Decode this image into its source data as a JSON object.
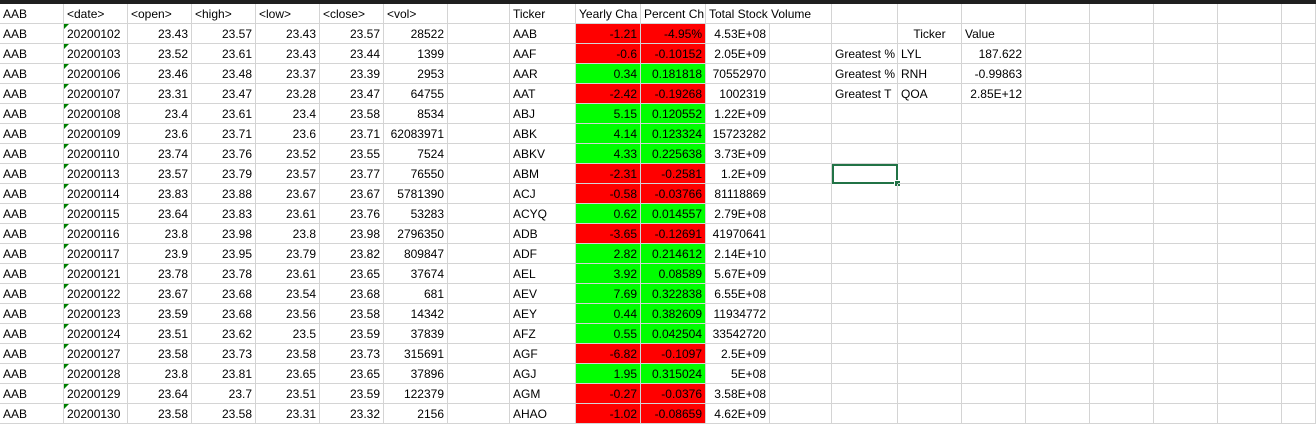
{
  "header": {
    "col_a": "AAB",
    "date": "<date>",
    "open": "<open>",
    "high": "<high>",
    "low": "<low>",
    "close": "<close>",
    "vol": "<vol>",
    "ticker": "Ticker",
    "yearly_change": "Yearly Cha",
    "percent_change": "Percent Ch",
    "total_volume": "Total Stock Volume"
  },
  "stock_rows": [
    [
      "AAB",
      "20200102",
      "23.43",
      "23.57",
      "23.43",
      "23.57",
      "28522"
    ],
    [
      "AAB",
      "20200103",
      "23.52",
      "23.61",
      "23.43",
      "23.44",
      "1399"
    ],
    [
      "AAB",
      "20200106",
      "23.46",
      "23.48",
      "23.37",
      "23.39",
      "2953"
    ],
    [
      "AAB",
      "20200107",
      "23.31",
      "23.47",
      "23.28",
      "23.47",
      "64755"
    ],
    [
      "AAB",
      "20200108",
      "23.4",
      "23.61",
      "23.4",
      "23.58",
      "8534"
    ],
    [
      "AAB",
      "20200109",
      "23.6",
      "23.71",
      "23.6",
      "23.71",
      "62083971"
    ],
    [
      "AAB",
      "20200110",
      "23.74",
      "23.76",
      "23.52",
      "23.55",
      "7524"
    ],
    [
      "AAB",
      "20200113",
      "23.57",
      "23.79",
      "23.57",
      "23.77",
      "76550"
    ],
    [
      "AAB",
      "20200114",
      "23.83",
      "23.88",
      "23.67",
      "23.67",
      "5781390"
    ],
    [
      "AAB",
      "20200115",
      "23.64",
      "23.83",
      "23.61",
      "23.76",
      "53283"
    ],
    [
      "AAB",
      "20200116",
      "23.8",
      "23.98",
      "23.8",
      "23.98",
      "2796350"
    ],
    [
      "AAB",
      "20200117",
      "23.9",
      "23.95",
      "23.79",
      "23.82",
      "809847"
    ],
    [
      "AAB",
      "20200121",
      "23.78",
      "23.78",
      "23.61",
      "23.65",
      "37674"
    ],
    [
      "AAB",
      "20200122",
      "23.67",
      "23.68",
      "23.54",
      "23.68",
      "681"
    ],
    [
      "AAB",
      "20200123",
      "23.59",
      "23.68",
      "23.56",
      "23.58",
      "14342"
    ],
    [
      "AAB",
      "20200124",
      "23.51",
      "23.62",
      "23.5",
      "23.59",
      "37839"
    ],
    [
      "AAB",
      "20200127",
      "23.58",
      "23.73",
      "23.58",
      "23.73",
      "315691"
    ],
    [
      "AAB",
      "20200128",
      "23.8",
      "23.81",
      "23.65",
      "23.65",
      "37896"
    ],
    [
      "AAB",
      "20200129",
      "23.64",
      "23.7",
      "23.51",
      "23.59",
      "122379"
    ],
    [
      "AAB",
      "20200130",
      "23.58",
      "23.58",
      "23.31",
      "23.32",
      "2156"
    ]
  ],
  "summary_rows": [
    {
      "ticker": "AAB",
      "yearly": "-1.21",
      "percent": "-4.95%",
      "volume": "4.53E+08",
      "status": "negative"
    },
    {
      "ticker": "AAF",
      "yearly": "-0.6",
      "percent": "-0.10152",
      "volume": "2.05E+09",
      "status": "negative"
    },
    {
      "ticker": "AAR",
      "yearly": "0.34",
      "percent": "0.181818",
      "volume": "70552970",
      "status": "positive"
    },
    {
      "ticker": "AAT",
      "yearly": "-2.42",
      "percent": "-0.19268",
      "volume": "1002319",
      "status": "negative"
    },
    {
      "ticker": "ABJ",
      "yearly": "5.15",
      "percent": "0.120552",
      "volume": "1.22E+09",
      "status": "positive"
    },
    {
      "ticker": "ABK",
      "yearly": "4.14",
      "percent": "0.123324",
      "volume": "15723282",
      "status": "positive"
    },
    {
      "ticker": "ABKV",
      "yearly": "4.33",
      "percent": "0.225638",
      "volume": "3.73E+09",
      "status": "positive"
    },
    {
      "ticker": "ABM",
      "yearly": "-2.31",
      "percent": "-0.2581",
      "volume": "1.2E+09",
      "status": "negative"
    },
    {
      "ticker": "ACJ",
      "yearly": "-0.58",
      "percent": "-0.03766",
      "volume": "81118869",
      "status": "negative"
    },
    {
      "ticker": "ACYQ",
      "yearly": "0.62",
      "percent": "0.014557",
      "volume": "2.79E+08",
      "status": "positive"
    },
    {
      "ticker": "ADB",
      "yearly": "-3.65",
      "percent": "-0.12691",
      "volume": "41970641",
      "status": "negative"
    },
    {
      "ticker": "ADF",
      "yearly": "2.82",
      "percent": "0.214612",
      "volume": "2.14E+10",
      "status": "positive"
    },
    {
      "ticker": "AEL",
      "yearly": "3.92",
      "percent": "0.08589",
      "volume": "5.67E+09",
      "status": "positive"
    },
    {
      "ticker": "AEV",
      "yearly": "7.69",
      "percent": "0.322838",
      "volume": "6.55E+08",
      "status": "positive"
    },
    {
      "ticker": "AEY",
      "yearly": "0.44",
      "percent": "0.382609",
      "volume": "11934772",
      "status": "positive"
    },
    {
      "ticker": "AFZ",
      "yearly": "0.55",
      "percent": "0.042504",
      "volume": "33542720",
      "status": "positive"
    },
    {
      "ticker": "AGF",
      "yearly": "-6.82",
      "percent": "-0.1097",
      "volume": "2.5E+09",
      "status": "negative"
    },
    {
      "ticker": "AGJ",
      "yearly": "1.95",
      "percent": "0.315024",
      "volume": "5E+08",
      "status": "positive"
    },
    {
      "ticker": "AGM",
      "yearly": "-0.27",
      "percent": "-0.0376",
      "volume": "3.58E+08",
      "status": "negative"
    },
    {
      "ticker": "AHAO",
      "yearly": "-1.02",
      "percent": "-0.08659",
      "volume": "4.62E+09",
      "status": "negative"
    }
  ],
  "greatest": {
    "header_ticker": "Ticker",
    "header_value": "Value",
    "rows": [
      {
        "label": "Greatest %",
        "ticker": "LYL",
        "value": "187.622"
      },
      {
        "label": "Greatest %",
        "ticker": "RNH",
        "value": "-0.99863"
      },
      {
        "label": "Greatest T",
        "ticker": "QOA",
        "value": "2.85E+12"
      }
    ]
  },
  "colors": {
    "positive": "#00ff00",
    "negative": "#ff0000",
    "selection": "#217346",
    "gridline": "#d4d4d4"
  }
}
